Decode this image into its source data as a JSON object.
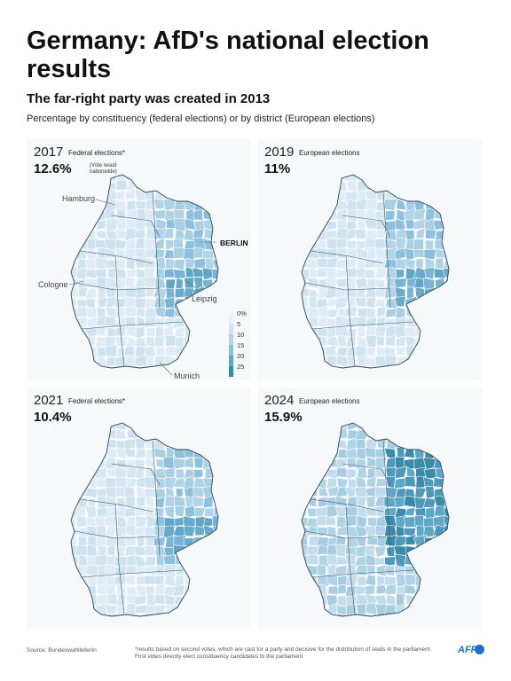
{
  "header": {
    "title": "Germany: AfD's national election results",
    "subtitle": "The far-right party was created in 2013",
    "description": "Percentage by constituency (federal elections) or by district (European elections)"
  },
  "panels": [
    {
      "year": "2017",
      "type": "Federal elections*",
      "percent": "12.6%",
      "note": "(Vote result nationwide)"
    },
    {
      "year": "2019",
      "type": "European elections",
      "percent": "11%",
      "note": ""
    },
    {
      "year": "2021",
      "type": "Federal elections*",
      "percent": "10.4%",
      "note": ""
    },
    {
      "year": "2024",
      "type": "European elections",
      "percent": "15.9%",
      "note": ""
    }
  ],
  "cities": {
    "hamburg": "Hamburg",
    "berlin": "BERLIN",
    "cologne": "Cologne",
    "leipzig": "Leipzig",
    "munich": "Munich"
  },
  "legend": {
    "labels": [
      "0%",
      "5",
      "10",
      "15",
      "20",
      "25"
    ],
    "colors": [
      "#e8f1f7",
      "#cfe3ef",
      "#b0d3e6",
      "#8cc0dc",
      "#5fa6c7",
      "#3a8aa9"
    ]
  },
  "shading": {
    "west": [
      "#dfecf5",
      "#d6e7f2",
      "#cfe3ef"
    ],
    "east": [
      "#b0d3e6",
      "#a9cfe3",
      "#8cc0dc"
    ],
    "saxony": [
      "#7ab4d3",
      "#6aaacb",
      "#5fa6c7"
    ],
    "east_2024": [
      "#5fa6c7",
      "#4e98ba",
      "#3a8aa9"
    ],
    "west_2024": [
      "#c3dcec",
      "#b0d3e6",
      "#a7cde3"
    ]
  },
  "footer": {
    "source": "Source: Bundeswahlleiterin",
    "note": "*results based on second votes, which are cast for a party and decisive for the distribution of seats in the parliament. First votes directly elect constituency candidates to the parliament",
    "logo": "AFP"
  }
}
